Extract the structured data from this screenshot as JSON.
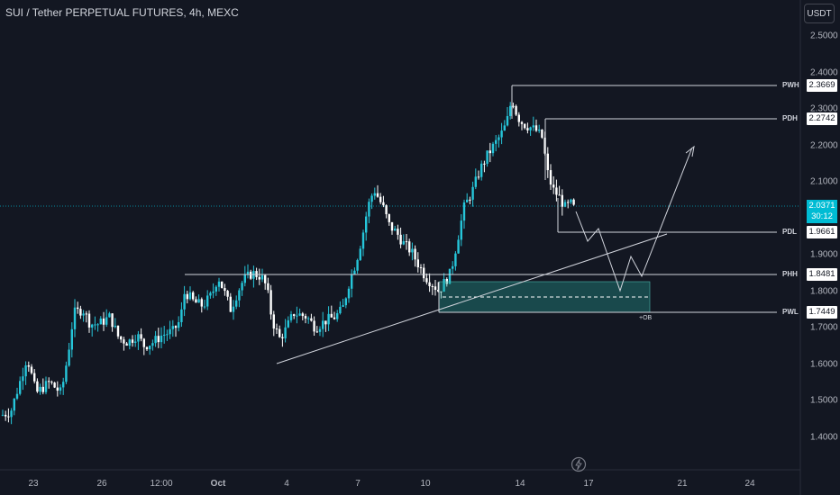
{
  "header": {
    "title": "SUI / Tether PERPETUAL FUTURES, 4h, MEXC",
    "currency": "USDT"
  },
  "price_axis": {
    "ticks": [
      "2.5000",
      "2.4000",
      "2.3000",
      "2.2000",
      "2.1000",
      "1.9000",
      "1.8000",
      "1.7000",
      "1.6000",
      "1.5000",
      "1.4000"
    ]
  },
  "time_axis": {
    "ticks": [
      "23",
      "26",
      "12:00",
      "Oct",
      "4",
      "7",
      "10",
      "14",
      "17",
      "21",
      "24"
    ]
  },
  "current_price": {
    "value": "2.0371",
    "countdown": "30:12",
    "color": "#00bcd4"
  },
  "levels": [
    {
      "label": "PWH",
      "value": "2.3669"
    },
    {
      "label": "PDH",
      "value": "2.2742"
    },
    {
      "label": "PDL",
      "value": "1.9661"
    },
    {
      "label": "PHH",
      "value": "1.8481"
    },
    {
      "label": "PWL",
      "value": "1.7449"
    }
  ],
  "order_block_label": "+OB",
  "colors": {
    "bull": "#26a69a",
    "bear": "#ef5350",
    "candle_up": "#26c6da",
    "candle_down": "#ffffff",
    "background": "#131722"
  },
  "icons": {
    "replay": "lightning-icon"
  }
}
